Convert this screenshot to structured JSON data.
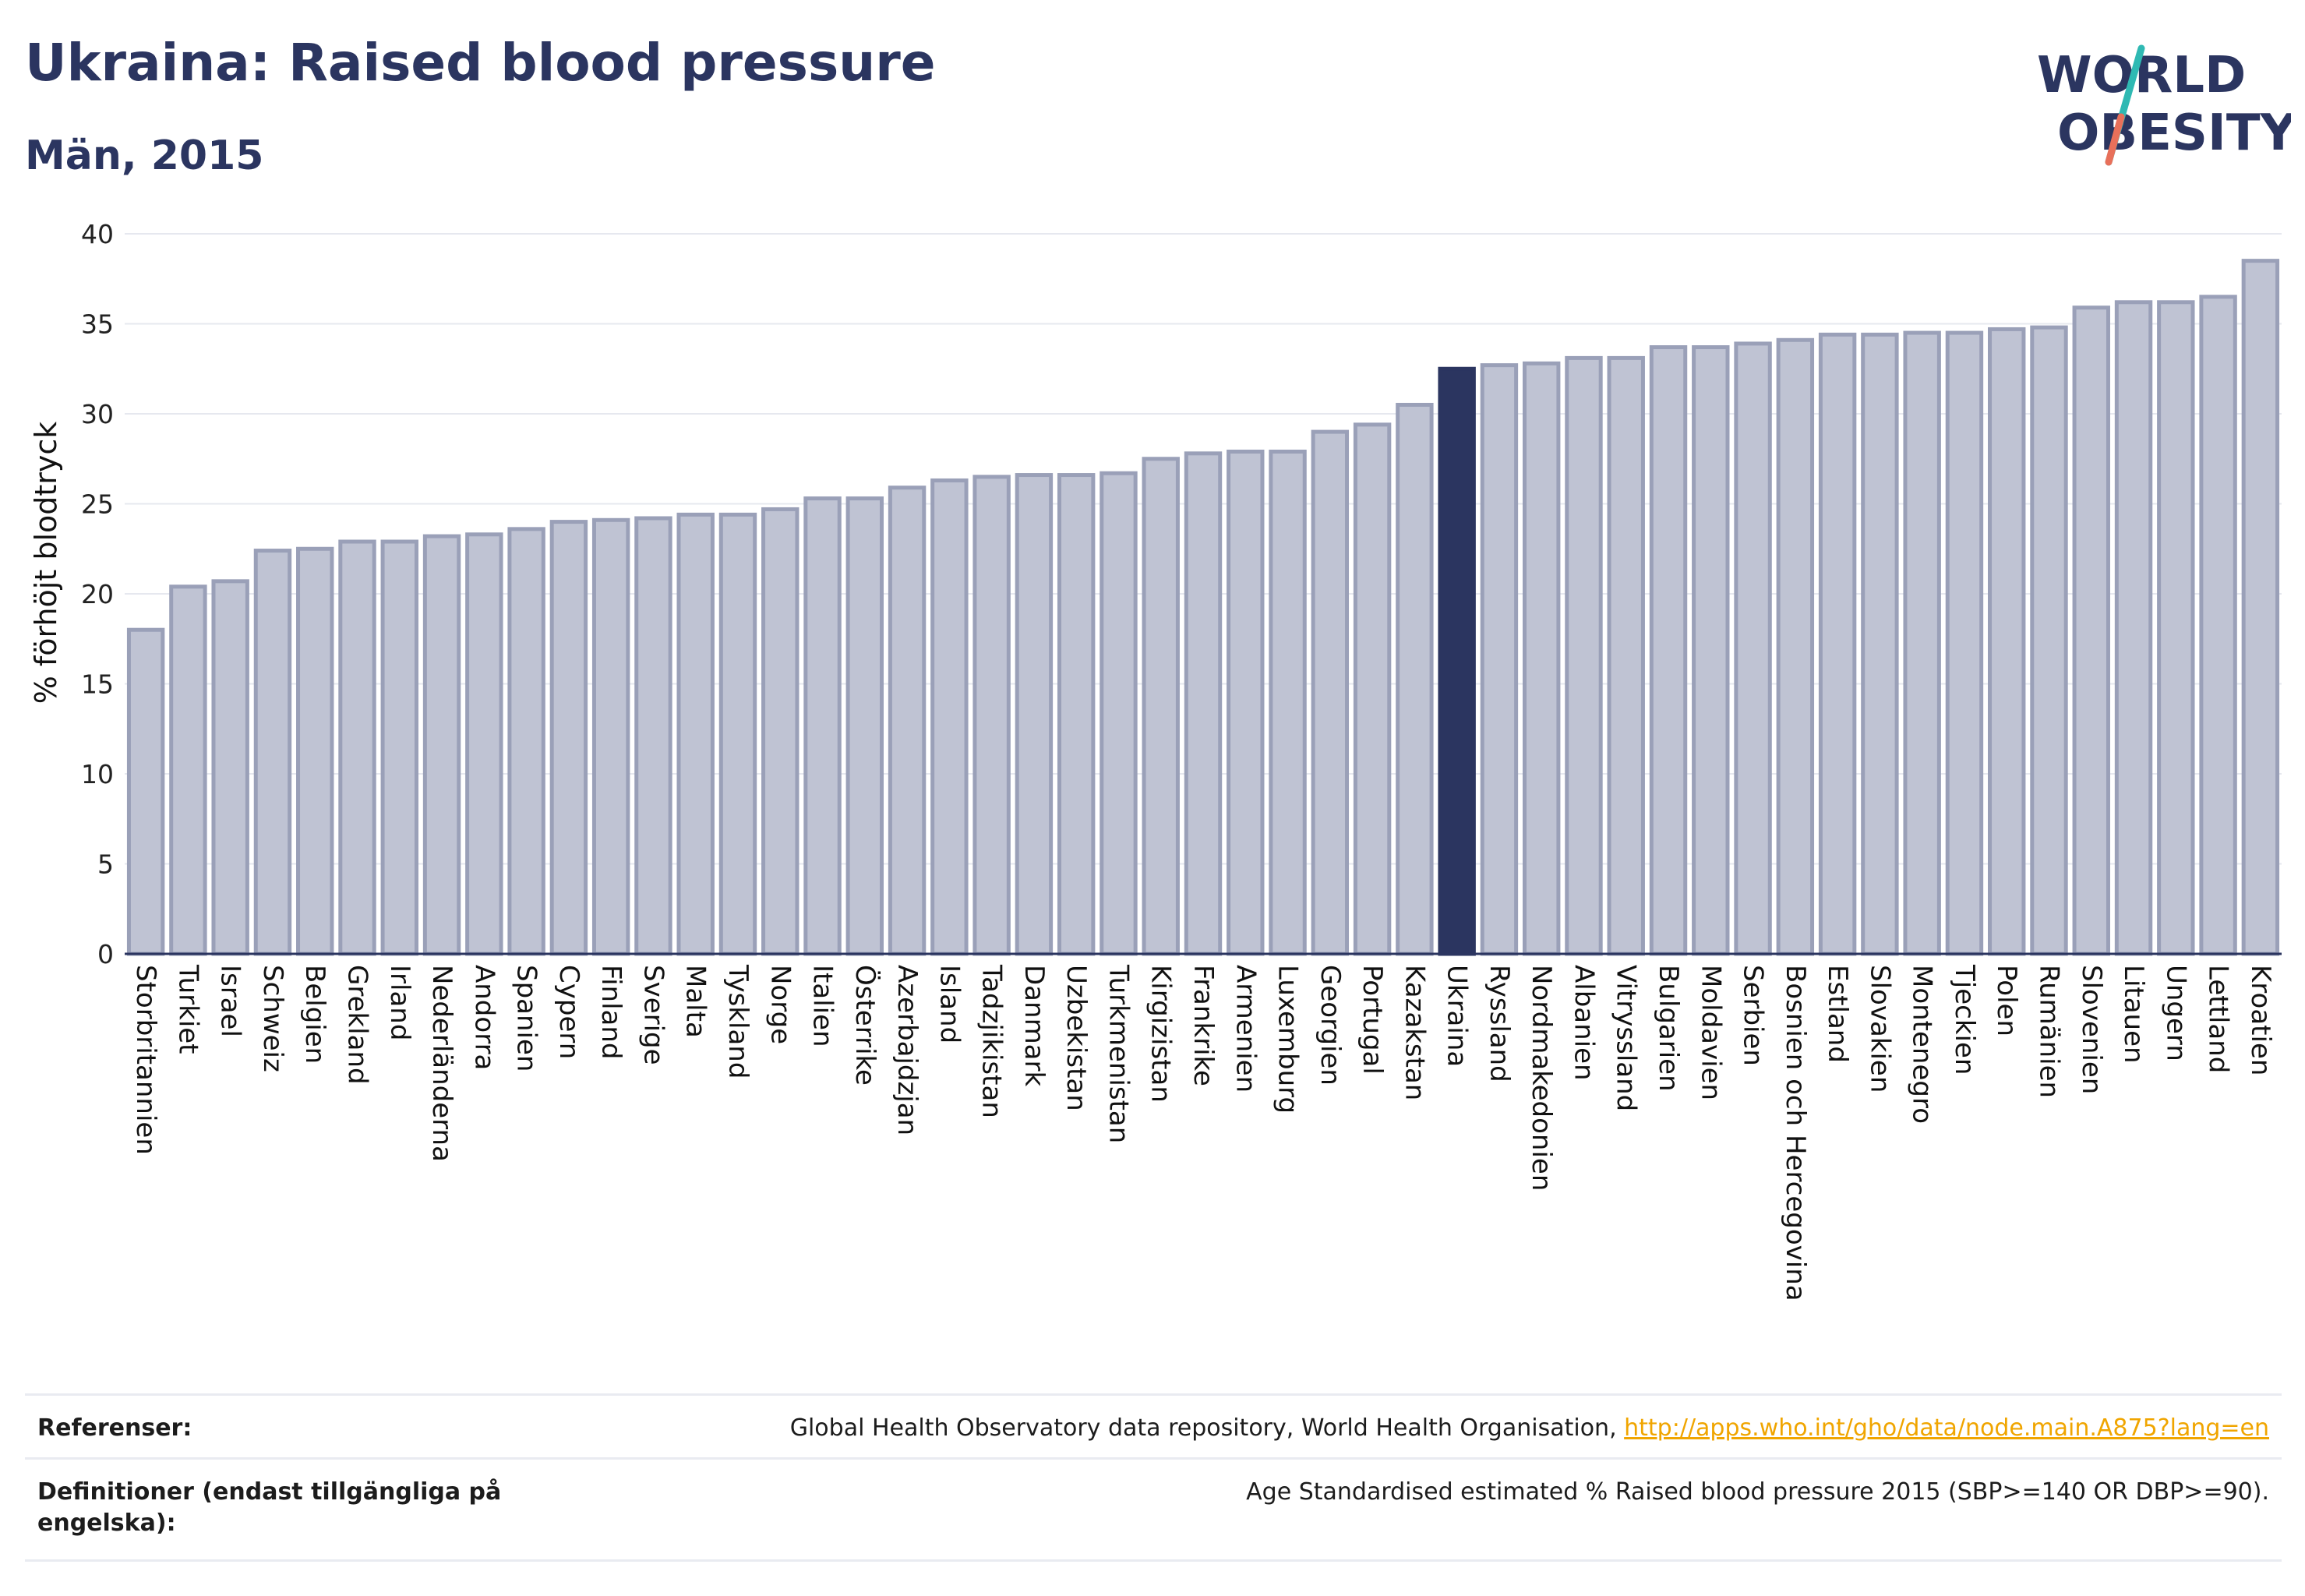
{
  "header": {
    "title": "Ukraina: Raised blood pressure",
    "subtitle": "Män, 2015"
  },
  "logo": {
    "line1": "WORLD",
    "line2": "OBESITY",
    "colors": {
      "text": "#2b3560",
      "slash_teal": "#2fb9b3",
      "slash_coral": "#e8705a"
    }
  },
  "chart_data": {
    "type": "bar",
    "ylabel": "% förhöjt blodtryck",
    "ylim": [
      0,
      40
    ],
    "yticks": [
      0,
      5,
      10,
      15,
      20,
      25,
      30,
      35,
      40
    ],
    "grid": true,
    "highlight": "Ukraina",
    "colors": {
      "bar": "#bfc3d3",
      "bar_edge": "#9aa0b8",
      "highlight": "#2b3560"
    },
    "categories": [
      "Storbritannien",
      "Turkiet",
      "Israel",
      "Schweiz",
      "Belgien",
      "Grekland",
      "Irland",
      "Nederländerna",
      "Andorra",
      "Spanien",
      "Cypern",
      "Finland",
      "Sverige",
      "Malta",
      "Tyskland",
      "Norge",
      "Italien",
      "Österrike",
      "Azerbajdzjan",
      "Island",
      "Tadzjikistan",
      "Danmark",
      "Uzbekistan",
      "Turkmenistan",
      "Kirgizistan",
      "Frankrike",
      "Armenien",
      "Luxemburg",
      "Georgien",
      "Portugal",
      "Kazakstan",
      "Ukraina",
      "Ryssland",
      "Nordmakedonien",
      "Albanien",
      "Vitryssland",
      "Bulgarien",
      "Moldavien",
      "Serbien",
      "Bosnien och Hercegovina",
      "Estland",
      "Slovakien",
      "Montenegro",
      "Tjeckien",
      "Polen",
      "Rumänien",
      "Slovenien",
      "Litauen",
      "Ungern",
      "Lettland",
      "Kroatien"
    ],
    "values": [
      18.0,
      20.4,
      20.7,
      22.4,
      22.5,
      22.9,
      22.9,
      23.2,
      23.3,
      23.6,
      24.0,
      24.1,
      24.2,
      24.4,
      24.4,
      24.7,
      25.3,
      25.3,
      25.9,
      26.3,
      26.5,
      26.6,
      26.6,
      26.7,
      27.5,
      27.8,
      27.9,
      27.9,
      29.0,
      29.4,
      30.5,
      32.5,
      32.7,
      32.8,
      33.1,
      33.1,
      33.7,
      33.7,
      33.9,
      34.1,
      34.4,
      34.4,
      34.5,
      34.5,
      34.7,
      34.8,
      35.9,
      36.2,
      36.2,
      36.5,
      38.5
    ]
  },
  "footer": {
    "references_label": "Referenser:",
    "references_text": "Global Health Observatory data repository, World Health Organisation, ",
    "references_link": "http://apps.who.int/gho/data/node.main.A875?lang=en",
    "definitions_label": "Definitioner (endast tillgängliga på engelska):",
    "definitions_text": "Age Standardised estimated % Raised blood pressure 2015 (SBP>=140 OR DBP>=90)."
  }
}
